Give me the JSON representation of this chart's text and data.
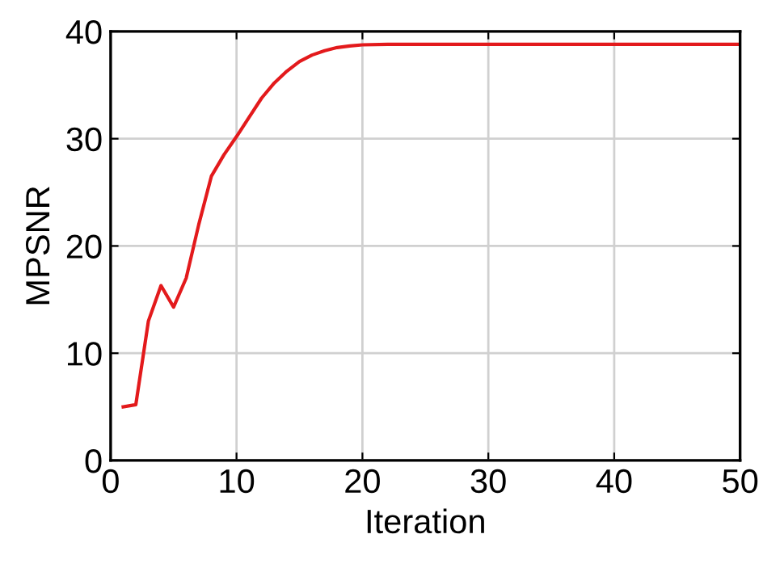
{
  "chart_data": {
    "type": "line",
    "xlabel": "Iteration",
    "ylabel": "MPSNR",
    "x": [
      1,
      2,
      3,
      4,
      5,
      6,
      7,
      8,
      9,
      10,
      11,
      12,
      13,
      14,
      15,
      16,
      17,
      18,
      19,
      20,
      22,
      25,
      30,
      35,
      40,
      45,
      50
    ],
    "series": [
      {
        "color": "#e31a1c",
        "values": [
          5.0,
          5.2,
          13.0,
          16.3,
          14.3,
          17.0,
          22.0,
          26.5,
          28.5,
          30.2,
          32.0,
          33.8,
          35.2,
          36.3,
          37.2,
          37.8,
          38.2,
          38.5,
          38.65,
          38.75,
          38.8,
          38.8,
          38.8,
          38.8,
          38.8,
          38.8,
          38.8
        ]
      }
    ],
    "xlim": [
      0,
      50
    ],
    "ylim": [
      0,
      40
    ],
    "xticks": [
      0,
      10,
      20,
      30,
      40,
      50
    ],
    "yticks": [
      0,
      10,
      20,
      30,
      40
    ],
    "grid": true,
    "legend": false,
    "marker": "none",
    "line_style": "solid"
  }
}
